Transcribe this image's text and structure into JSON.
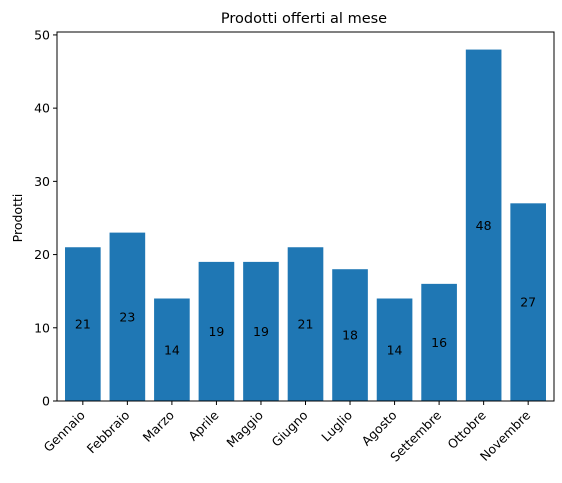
{
  "chart_data": {
    "type": "bar",
    "title": "Prodotti offerti al mese",
    "xlabel": "",
    "ylabel": "Prodotti",
    "categories": [
      "Gennaio",
      "Febbraio",
      "Marzo",
      "Aprile",
      "Maggio",
      "Giugno",
      "Luglio",
      "Agosto",
      "Settembre",
      "Ottobre",
      "Novembre"
    ],
    "values": [
      21,
      23,
      14,
      19,
      19,
      21,
      18,
      14,
      16,
      48,
      27
    ],
    "data_labels": [
      "21",
      "23",
      "14",
      "19",
      "19",
      "21",
      "18",
      "14",
      "16",
      "48",
      "27"
    ],
    "yticks": [
      0,
      10,
      20,
      30,
      40,
      50
    ],
    "ylim": [
      0,
      50.4
    ],
    "bar_color": "#1f77b4",
    "grid": false,
    "legend": "none"
  }
}
